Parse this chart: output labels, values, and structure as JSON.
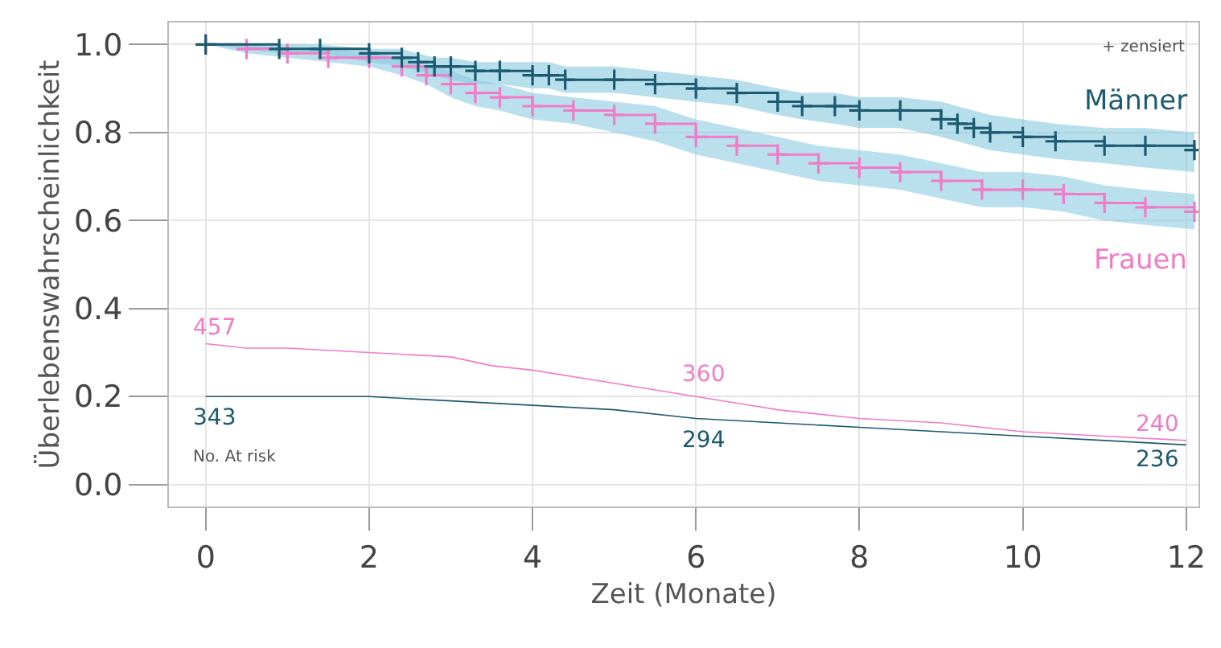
{
  "chart_data": {
    "type": "step",
    "xlabel": "Zeit (Monate)",
    "ylabel": "Überlebenswahrscheinlichkeit",
    "xlim": [
      -0.45,
      12.15
    ],
    "ylim": [
      -0.05,
      1.05
    ],
    "xticks": [
      0,
      2,
      4,
      6,
      8,
      10,
      12
    ],
    "yticks": [
      {
        "value": 0,
        "label": "0.0"
      },
      0.2,
      0.4,
      0.6,
      0.8,
      {
        "value": 1,
        "label": "1.0"
      }
    ],
    "grid": true,
    "legend": false,
    "marker": "cross",
    "series": [
      {
        "name": "Männer",
        "color": "#1b5a70",
        "x": [
          0,
          0.9,
          1.4,
          2,
          2.4,
          2.6,
          2.8,
          3,
          3.3,
          3.6,
          4,
          4.2,
          4.4,
          5,
          5.5,
          6,
          6.5,
          7,
          7.3,
          7.7,
          8,
          8.5,
          9,
          9.2,
          9.4,
          9.6,
          10,
          10.4,
          11,
          11.5,
          12.1
        ],
        "values": [
          1.0,
          0.99,
          0.99,
          0.98,
          0.97,
          0.96,
          0.95,
          0.95,
          0.94,
          0.94,
          0.93,
          0.93,
          0.92,
          0.92,
          0.91,
          0.9,
          0.89,
          0.87,
          0.86,
          0.86,
          0.85,
          0.85,
          0.83,
          0.82,
          0.81,
          0.8,
          0.79,
          0.78,
          0.77,
          0.77,
          0.76
        ],
        "lower": [
          1.0,
          0.98,
          0.98,
          0.96,
          0.95,
          0.94,
          0.93,
          0.92,
          0.91,
          0.91,
          0.9,
          0.9,
          0.89,
          0.89,
          0.88,
          0.87,
          0.86,
          0.84,
          0.83,
          0.82,
          0.81,
          0.81,
          0.79,
          0.78,
          0.77,
          0.76,
          0.75,
          0.74,
          0.73,
          0.72,
          0.71
        ],
        "upper": [
          1.0,
          1.0,
          1.0,
          0.99,
          0.99,
          0.98,
          0.97,
          0.97,
          0.96,
          0.96,
          0.96,
          0.96,
          0.95,
          0.95,
          0.94,
          0.93,
          0.92,
          0.9,
          0.89,
          0.89,
          0.88,
          0.88,
          0.87,
          0.86,
          0.85,
          0.84,
          0.83,
          0.82,
          0.81,
          0.81,
          0.8
        ]
      },
      {
        "name": "Frauen",
        "color": "#f07cc8",
        "x": [
          0,
          0.5,
          1,
          1.5,
          2,
          2.4,
          2.7,
          3,
          3.3,
          3.6,
          4,
          4.5,
          5,
          5.5,
          6,
          6.5,
          7,
          7.5,
          8,
          8.5,
          9,
          9.5,
          10,
          10.5,
          11,
          11.5,
          12.1
        ],
        "values": [
          1.0,
          0.99,
          0.98,
          0.97,
          0.97,
          0.95,
          0.93,
          0.91,
          0.89,
          0.88,
          0.86,
          0.85,
          0.84,
          0.82,
          0.79,
          0.77,
          0.75,
          0.73,
          0.72,
          0.71,
          0.69,
          0.67,
          0.67,
          0.66,
          0.64,
          0.63,
          0.62
        ],
        "lower": [
          1.0,
          0.98,
          0.97,
          0.96,
          0.95,
          0.93,
          0.91,
          0.88,
          0.86,
          0.85,
          0.83,
          0.82,
          0.8,
          0.78,
          0.75,
          0.73,
          0.71,
          0.69,
          0.68,
          0.67,
          0.65,
          0.63,
          0.63,
          0.62,
          0.6,
          0.59,
          0.58
        ],
        "upper": [
          1.0,
          1.0,
          0.99,
          0.99,
          0.98,
          0.97,
          0.95,
          0.94,
          0.92,
          0.91,
          0.89,
          0.88,
          0.87,
          0.86,
          0.83,
          0.81,
          0.79,
          0.77,
          0.76,
          0.75,
          0.73,
          0.71,
          0.71,
          0.7,
          0.68,
          0.67,
          0.66
        ]
      },
      {
        "type": "line",
        "marker": "none",
        "color": "#f07cc8",
        "x": [
          0,
          0.5,
          1,
          2,
          3,
          3.5,
          4,
          5,
          6,
          7,
          8,
          9,
          10,
          11,
          12
        ],
        "values": [
          0.32,
          0.31,
          0.31,
          0.3,
          0.29,
          0.27,
          0.26,
          0.23,
          0.2,
          0.17,
          0.15,
          0.14,
          0.12,
          0.11,
          0.1
        ]
      },
      {
        "type": "line",
        "marker": "none",
        "color": "#1b5a70",
        "x": [
          0,
          1,
          2,
          3,
          4,
          5,
          6,
          7,
          8,
          9,
          10,
          11,
          12
        ],
        "values": [
          0.2,
          0.2,
          0.2,
          0.19,
          0.18,
          0.17,
          0.15,
          0.14,
          0.13,
          0.12,
          0.11,
          0.1,
          0.09
        ]
      }
    ],
    "annotations": [
      "457",
      "343",
      "No. At risk",
      "360",
      "294",
      "240",
      "236",
      "+ zensiert"
    ]
  }
}
